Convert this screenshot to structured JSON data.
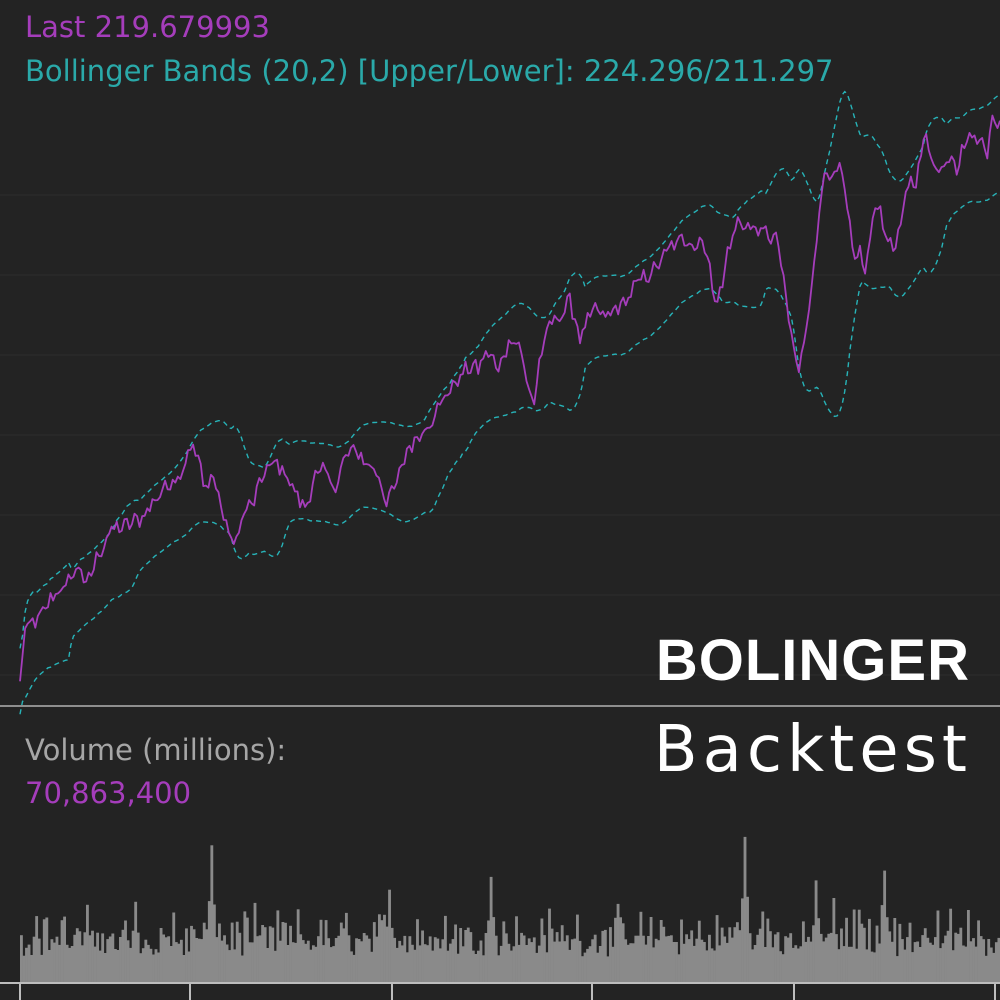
{
  "header": {
    "last_label": "Last",
    "last_value": "219.679993",
    "bb_label": "Bollinger Bands (20,2) [Upper/Lower]:",
    "bb_value": "224.296/211.297"
  },
  "volume_panel": {
    "label": "Volume (millions):",
    "value": "70,863,400"
  },
  "overlay_title": {
    "line1": "BOLINGER",
    "line2": "Backtest"
  },
  "colors": {
    "background": "#232323",
    "price_line": "#a53dbb",
    "bands": "#27b3b8",
    "header_bands_text": "#2aa9a9",
    "volume_bars": "#8a8a8a",
    "grid": "#2c2c2c",
    "divider": "#8e8e8e"
  },
  "chart_data": {
    "type": "line",
    "title": "",
    "xlabel": "",
    "ylabel": "",
    "grid": true,
    "y_range": [
      150,
      227
    ],
    "volume_range_millions": [
      0,
      200
    ],
    "price_anchors": [
      [
        0,
        152
      ],
      [
        2,
        158.5
      ],
      [
        8,
        160
      ],
      [
        14,
        163
      ],
      [
        18,
        163.5
      ],
      [
        20,
        165
      ],
      [
        24,
        166
      ],
      [
        26,
        163.5
      ],
      [
        30,
        167
      ],
      [
        36,
        170.5
      ],
      [
        42,
        171
      ],
      [
        48,
        172
      ],
      [
        54,
        174.5
      ],
      [
        60,
        176.5
      ],
      [
        64,
        177.5
      ],
      [
        66,
        180.5
      ],
      [
        70,
        179.5
      ],
      [
        72,
        175.5
      ],
      [
        76,
        177
      ],
      [
        80,
        172
      ],
      [
        84,
        168.5
      ],
      [
        88,
        172.5
      ],
      [
        92,
        174
      ],
      [
        96,
        177.5
      ],
      [
        100,
        178.5
      ],
      [
        104,
        177.5
      ],
      [
        108,
        175
      ],
      [
        112,
        173
      ],
      [
        116,
        177
      ],
      [
        120,
        177.5
      ],
      [
        124,
        175.5
      ],
      [
        128,
        179.5
      ],
      [
        132,
        180
      ],
      [
        136,
        178.5
      ],
      [
        140,
        177.5
      ],
      [
        144,
        174
      ],
      [
        148,
        176
      ],
      [
        152,
        180
      ],
      [
        156,
        181.5
      ],
      [
        160,
        183
      ],
      [
        164,
        185
      ],
      [
        168,
        187
      ],
      [
        172,
        188.5
      ],
      [
        176,
        190
      ],
      [
        180,
        190
      ],
      [
        184,
        192
      ],
      [
        188,
        189.5
      ],
      [
        190,
        191.5
      ],
      [
        192,
        193
      ],
      [
        194,
        193.5
      ],
      [
        196,
        193
      ],
      [
        198,
        190
      ],
      [
        200,
        187
      ],
      [
        202,
        186
      ],
      [
        204,
        190.5
      ],
      [
        206,
        193
      ],
      [
        208,
        195
      ],
      [
        210,
        196
      ],
      [
        212,
        196
      ],
      [
        214,
        197
      ],
      [
        216,
        198
      ],
      [
        218,
        196
      ],
      [
        220,
        193.5
      ],
      [
        222,
        195
      ],
      [
        226,
        197
      ],
      [
        230,
        196
      ],
      [
        234,
        197
      ],
      [
        238,
        198
      ],
      [
        242,
        200
      ],
      [
        246,
        201
      ],
      [
        250,
        202
      ],
      [
        254,
        204
      ],
      [
        258,
        205
      ],
      [
        262,
        205.5
      ],
      [
        266,
        204.5
      ],
      [
        268,
        206
      ],
      [
        270,
        203
      ],
      [
        272,
        200
      ],
      [
        274,
        198
      ],
      [
        276,
        200
      ],
      [
        278,
        204
      ],
      [
        282,
        207.5
      ],
      [
        286,
        207
      ],
      [
        290,
        206.5
      ],
      [
        294,
        206
      ],
      [
        298,
        205
      ],
      [
        300,
        200
      ],
      [
        302,
        196
      ],
      [
        304,
        192
      ],
      [
        306,
        189.5
      ],
      [
        308,
        193
      ],
      [
        310,
        198
      ],
      [
        312,
        202
      ],
      [
        314,
        209
      ],
      [
        316,
        214
      ],
      [
        318,
        212
      ],
      [
        320,
        213
      ],
      [
        322,
        214
      ],
      [
        324,
        211
      ],
      [
        326,
        207
      ],
      [
        328,
        203
      ],
      [
        330,
        204
      ],
      [
        332,
        201
      ],
      [
        334,
        206
      ],
      [
        336,
        210
      ],
      [
        338,
        208.5
      ],
      [
        340,
        206
      ],
      [
        342,
        205
      ],
      [
        344,
        204
      ],
      [
        346,
        207
      ],
      [
        348,
        211
      ],
      [
        350,
        213
      ],
      [
        352,
        212
      ],
      [
        354,
        216
      ],
      [
        356,
        217.5
      ],
      [
        358,
        216
      ],
      [
        360,
        213.5
      ],
      [
        362,
        214
      ],
      [
        364,
        215
      ],
      [
        366,
        216
      ],
      [
        368,
        214
      ],
      [
        370,
        216
      ],
      [
        372,
        217.5
      ],
      [
        374,
        218
      ],
      [
        376,
        217
      ],
      [
        378,
        218
      ],
      [
        380,
        216
      ],
      [
        382,
        219.5
      ],
      [
        384,
        219.5
      ],
      [
        385,
        219.7
      ]
    ],
    "band_width_anchors": [
      [
        0,
        2.2
      ],
      [
        60,
        2.4
      ],
      [
        80,
        3.6
      ],
      [
        100,
        2.6
      ],
      [
        130,
        2.6
      ],
      [
        150,
        3.2
      ],
      [
        180,
        2.8
      ],
      [
        195,
        3.6
      ],
      [
        210,
        2.8
      ],
      [
        240,
        2.6
      ],
      [
        270,
        2.8
      ],
      [
        290,
        2.6
      ],
      [
        300,
        4.4
      ],
      [
        310,
        5
      ],
      [
        325,
        4.8
      ],
      [
        340,
        3.8
      ],
      [
        355,
        4
      ],
      [
        370,
        3
      ],
      [
        385,
        3.25
      ]
    ],
    "volume_spikes": [
      [
        75,
        130
      ],
      [
        185,
        103
      ],
      [
        285,
        140
      ],
      [
        313,
        95
      ],
      [
        340,
        110
      ],
      [
        320,
        78
      ],
      [
        145,
        90
      ],
      [
        45,
        75
      ]
    ],
    "series": [
      {
        "name": "Last"
      },
      {
        "name": "Bollinger Bands (20,2) Upper"
      },
      {
        "name": "Bollinger Bands (20,2) Lower"
      },
      {
        "name": "Volume (millions)"
      }
    ]
  }
}
